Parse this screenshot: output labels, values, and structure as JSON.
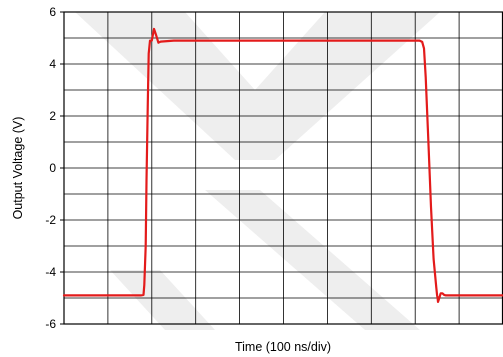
{
  "chart_data": {
    "type": "line",
    "title": "",
    "xlabel": "Time (100 ns/div)",
    "ylabel": "Output Voltage (V)",
    "xlim": [
      0,
      1000
    ],
    "ylim": [
      -6,
      6
    ],
    "x_divisions": 10,
    "y_ticks": [
      -6,
      -4,
      -2,
      0,
      2,
      4,
      6
    ],
    "y_tick_labels": [
      "-6",
      "-4",
      "-2",
      "0",
      "2",
      "4",
      "6"
    ],
    "grid": true,
    "legend": "none",
    "series": [
      {
        "color": "#e31b1b",
        "x": [
          0,
          40,
          80,
          120,
          160,
          175,
          181,
          183,
          186,
          188,
          191,
          193,
          196,
          200,
          205,
          210,
          215,
          220,
          250,
          300,
          350,
          400,
          450,
          500,
          550,
          600,
          650,
          700,
          750,
          800,
          810,
          816,
          820,
          824,
          830,
          836,
          842,
          848,
          850,
          851,
          852,
          855,
          858,
          862,
          866,
          870,
          880,
          900,
          950,
          1000
        ],
        "values": [
          -4.9,
          -4.9,
          -4.9,
          -4.9,
          -4.9,
          -4.9,
          -4.88,
          -4.5,
          -3.0,
          -0.5,
          2.5,
          4.4,
          4.9,
          4.9,
          5.35,
          5.1,
          4.82,
          4.86,
          4.9,
          4.9,
          4.9,
          4.9,
          4.9,
          4.9,
          4.9,
          4.9,
          4.9,
          4.9,
          4.9,
          4.9,
          4.9,
          4.85,
          4.6,
          3.5,
          1.0,
          -1.5,
          -3.5,
          -4.6,
          -4.9,
          -5.0,
          -5.15,
          -5.0,
          -4.82,
          -4.82,
          -4.88,
          -4.9,
          -4.9,
          -4.9,
          -4.9,
          -4.9
        ]
      }
    ]
  }
}
